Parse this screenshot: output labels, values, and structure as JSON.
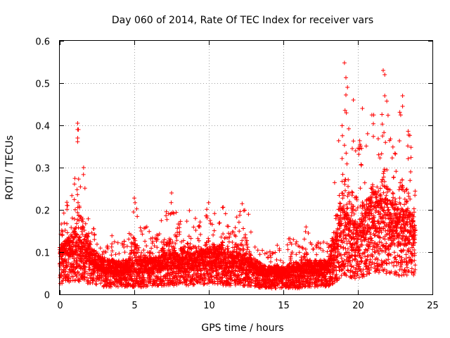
{
  "chart_data": {
    "type": "scatter",
    "title": "Day 060 of 2014, Rate Of TEC Index for receiver vars",
    "xlabel": "GPS time / hours",
    "ylabel": "ROTI / TECUs",
    "xlim": [
      0,
      25
    ],
    "ylim": [
      0,
      0.6
    ],
    "xticks": [
      0,
      5,
      10,
      15,
      20,
      25
    ],
    "yticks": [
      0,
      0.1,
      0.2,
      0.3,
      0.4,
      0.5,
      0.6
    ],
    "xtick_labels": [
      "0",
      "5",
      "10",
      "15",
      "20",
      "25"
    ],
    "ytick_labels": [
      "0",
      "0.1",
      "0.2",
      "0.3",
      "0.4",
      "0.5",
      "0.6"
    ],
    "grid": true,
    "marker": "+",
    "series": [
      {
        "name": "ROTI",
        "color": "#ff0000",
        "envelope_hourly_max": [
          [
            0,
            0.18
          ],
          [
            0.5,
            0.22
          ],
          [
            1.0,
            0.27
          ],
          [
            1.2,
            0.41
          ],
          [
            1.5,
            0.3
          ],
          [
            2.0,
            0.21
          ],
          [
            2.5,
            0.12
          ],
          [
            3.0,
            0.1
          ],
          [
            3.5,
            0.14
          ],
          [
            4.0,
            0.12
          ],
          [
            4.5,
            0.13
          ],
          [
            5.0,
            0.23
          ],
          [
            5.5,
            0.15
          ],
          [
            6.0,
            0.17
          ],
          [
            6.5,
            0.14
          ],
          [
            7.0,
            0.2
          ],
          [
            7.5,
            0.24
          ],
          [
            8.0,
            0.17
          ],
          [
            8.5,
            0.21
          ],
          [
            9.0,
            0.2
          ],
          [
            9.5,
            0.18
          ],
          [
            10.0,
            0.22
          ],
          [
            10.5,
            0.19
          ],
          [
            11.0,
            0.21
          ],
          [
            11.5,
            0.16
          ],
          [
            12.0,
            0.21
          ],
          [
            12.5,
            0.23
          ],
          [
            13.0,
            0.12
          ],
          [
            13.5,
            0.11
          ],
          [
            14.0,
            0.1
          ],
          [
            14.5,
            0.12
          ],
          [
            15.0,
            0.1
          ],
          [
            15.5,
            0.15
          ],
          [
            16.0,
            0.12
          ],
          [
            16.5,
            0.17
          ],
          [
            17.0,
            0.11
          ],
          [
            17.5,
            0.13
          ],
          [
            18.0,
            0.12
          ],
          [
            18.5,
            0.33
          ],
          [
            19.0,
            0.41
          ],
          [
            19.2,
            0.55
          ],
          [
            19.5,
            0.43
          ],
          [
            20.0,
            0.38
          ],
          [
            20.5,
            0.36
          ],
          [
            21.0,
            0.44
          ],
          [
            21.5,
            0.42
          ],
          [
            21.8,
            0.53
          ],
          [
            22.0,
            0.45
          ],
          [
            22.5,
            0.38
          ],
          [
            23.0,
            0.47
          ],
          [
            23.5,
            0.38
          ],
          [
            23.8,
            0.26
          ]
        ],
        "envelope_hourly_median": [
          [
            0,
            0.07
          ],
          [
            1.0,
            0.09
          ],
          [
            2.0,
            0.07
          ],
          [
            3.0,
            0.05
          ],
          [
            4.0,
            0.05
          ],
          [
            5.0,
            0.05
          ],
          [
            6.0,
            0.05
          ],
          [
            7.0,
            0.06
          ],
          [
            8.0,
            0.06
          ],
          [
            9.0,
            0.06
          ],
          [
            10.0,
            0.07
          ],
          [
            11.0,
            0.06
          ],
          [
            12.0,
            0.06
          ],
          [
            13.0,
            0.05
          ],
          [
            14.0,
            0.04
          ],
          [
            15.0,
            0.04
          ],
          [
            16.0,
            0.04
          ],
          [
            17.0,
            0.05
          ],
          [
            18.0,
            0.05
          ],
          [
            19.0,
            0.12
          ],
          [
            20.0,
            0.1
          ],
          [
            21.0,
            0.15
          ],
          [
            22.0,
            0.14
          ],
          [
            23.0,
            0.12
          ]
        ],
        "notable_points": [
          {
            "x": 1.2,
            "y": 0.405
          },
          {
            "x": 1.25,
            "y": 0.39
          },
          {
            "x": 1.2,
            "y": 0.37
          },
          {
            "x": 1.6,
            "y": 0.3
          },
          {
            "x": 5.0,
            "y": 0.228
          },
          {
            "x": 7.5,
            "y": 0.24
          },
          {
            "x": 19.1,
            "y": 0.548
          },
          {
            "x": 19.2,
            "y": 0.513
          },
          {
            "x": 19.3,
            "y": 0.49
          },
          {
            "x": 19.7,
            "y": 0.46
          },
          {
            "x": 20.3,
            "y": 0.44
          },
          {
            "x": 21.7,
            "y": 0.53
          },
          {
            "x": 21.8,
            "y": 0.52
          },
          {
            "x": 21.8,
            "y": 0.47
          },
          {
            "x": 23.0,
            "y": 0.47
          },
          {
            "x": 23.0,
            "y": 0.445
          }
        ]
      }
    ]
  }
}
